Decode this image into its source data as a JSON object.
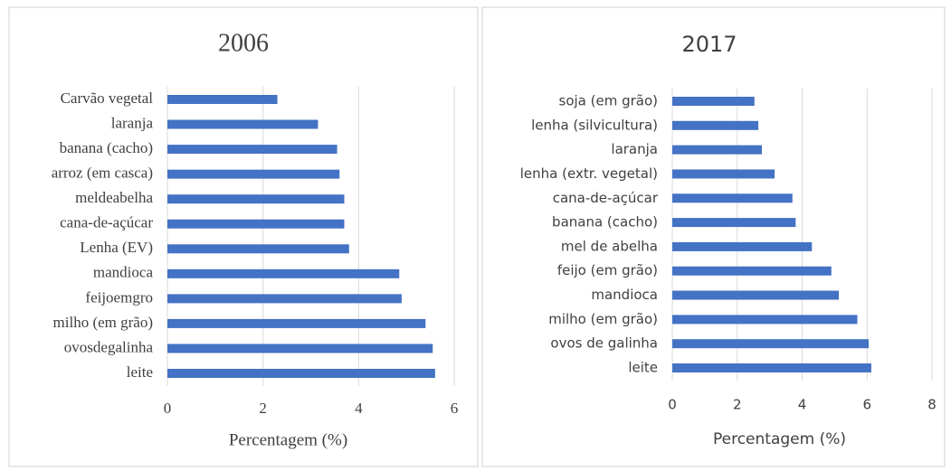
{
  "chart_data": [
    {
      "type": "barh",
      "title": "2006",
      "x_label": "Percentagem (%)",
      "categories": [
        "Carvão vegetal",
        "laranja",
        "banana (cacho)",
        "arroz (em casca)",
        "meldeabelha",
        "cana-de-açúcar",
        "Lenha (EV)",
        "mandioca",
        "feijoemgro",
        "milho (em grão)",
        "ovosdegalinha",
        "leite"
      ],
      "values": [
        2.3,
        3.15,
        3.55,
        3.6,
        3.7,
        3.7,
        3.8,
        4.85,
        4.9,
        5.4,
        5.55,
        5.6
      ],
      "color": "#4472c4",
      "xlim": [
        0,
        6
      ],
      "xticks": [
        0,
        2,
        4,
        6
      ],
      "grid": true
    },
    {
      "type": "barh",
      "title": "2017",
      "x_label": "Percentagem (%)",
      "categories": [
        "soja (em grão)",
        "lenha (silvicultura)",
        "laranja",
        "lenha (extr. vegetal)",
        "cana-de-açúcar",
        "banana (cacho)",
        "mel de abelha",
        "feijo (em grão)",
        "mandioca",
        "milho (em grão)",
        "ovos de galinha",
        "leite"
      ],
      "values": [
        2.53,
        2.65,
        2.76,
        3.15,
        3.7,
        3.8,
        4.3,
        4.9,
        5.13,
        5.7,
        6.05,
        6.13
      ],
      "color": "#4472c4",
      "xlim": [
        0,
        8
      ],
      "xticks": [
        0,
        2,
        4,
        6,
        8
      ],
      "grid": true
    }
  ]
}
